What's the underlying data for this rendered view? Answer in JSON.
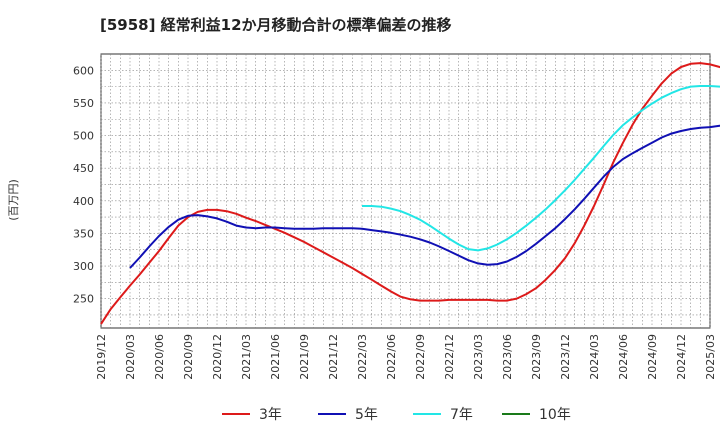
{
  "chart_data": {
    "type": "line",
    "title": "[5958]  経常利益12か月移動合計の標準偏差の推移",
    "ylabel": "(百万円)",
    "xlabel": "",
    "ylim": [
      205,
      625
    ],
    "yticks": [
      250,
      300,
      350,
      400,
      450,
      500,
      550,
      600
    ],
    "x_ticks": [
      "2019/12",
      "2020/03",
      "2020/06",
      "2020/09",
      "2020/12",
      "2021/03",
      "2021/06",
      "2021/09",
      "2021/12",
      "2022/03",
      "2022/06",
      "2022/09",
      "2022/12",
      "2023/03",
      "2023/06",
      "2023/09",
      "2023/12",
      "2024/03",
      "2024/06",
      "2024/09",
      "2024/12",
      "2025/03"
    ],
    "grid": true,
    "legend_position": "bottom",
    "series": [
      {
        "name": "3年",
        "color": "#dd1a1a",
        "points": [
          [
            "2019/12",
            211
          ],
          [
            "2020/01",
            234
          ],
          [
            "2020/02",
            252
          ],
          [
            "2020/03",
            270
          ],
          [
            "2020/04",
            287
          ],
          [
            "2020/05",
            305
          ],
          [
            "2020/06",
            323
          ],
          [
            "2020/07",
            343
          ],
          [
            "2020/08",
            362
          ],
          [
            "2020/09",
            375
          ],
          [
            "2020/10",
            383
          ],
          [
            "2020/11",
            386
          ],
          [
            "2020/12",
            386
          ],
          [
            "2021/01",
            384
          ],
          [
            "2021/02",
            380
          ],
          [
            "2021/03",
            374
          ],
          [
            "2021/04",
            369
          ],
          [
            "2021/05",
            363
          ],
          [
            "2021/06",
            357
          ],
          [
            "2021/07",
            351
          ],
          [
            "2021/08",
            344
          ],
          [
            "2021/09",
            337
          ],
          [
            "2021/10",
            329
          ],
          [
            "2021/11",
            321
          ],
          [
            "2021/12",
            313
          ],
          [
            "2022/01",
            305
          ],
          [
            "2022/02",
            297
          ],
          [
            "2022/03",
            288
          ],
          [
            "2022/04",
            279
          ],
          [
            "2022/05",
            270
          ],
          [
            "2022/06",
            261
          ],
          [
            "2022/07",
            253
          ],
          [
            "2022/08",
            249
          ],
          [
            "2022/09",
            247
          ],
          [
            "2022/10",
            247
          ],
          [
            "2022/11",
            247
          ],
          [
            "2022/12",
            248
          ],
          [
            "2023/01",
            248
          ],
          [
            "2023/02",
            248
          ],
          [
            "2023/03",
            248
          ],
          [
            "2023/04",
            248
          ],
          [
            "2023/05",
            247
          ],
          [
            "2023/06",
            247
          ],
          [
            "2023/07",
            250
          ],
          [
            "2023/08",
            257
          ],
          [
            "2023/09",
            266
          ],
          [
            "2023/10",
            279
          ],
          [
            "2023/11",
            294
          ],
          [
            "2023/12",
            312
          ],
          [
            "2024/01",
            335
          ],
          [
            "2024/02",
            362
          ],
          [
            "2024/03",
            392
          ],
          [
            "2024/04",
            425
          ],
          [
            "2024/05",
            459
          ],
          [
            "2024/06",
            489
          ],
          [
            "2024/07",
            517
          ],
          [
            "2024/08",
            541
          ],
          [
            "2024/09",
            561
          ],
          [
            "2024/10",
            580
          ],
          [
            "2024/11",
            595
          ],
          [
            "2024/12",
            605
          ],
          [
            "2025/01",
            610
          ],
          [
            "2025/02",
            611
          ],
          [
            "2025/03",
            609
          ],
          [
            "2025/04",
            605
          ],
          [
            "2025/05",
            599
          ],
          [
            "2025/06",
            593
          ]
        ]
      },
      {
        "name": "5年",
        "color": "#1010b4",
        "points": [
          [
            "2020/03",
            297
          ],
          [
            "2020/04",
            313
          ],
          [
            "2020/05",
            330
          ],
          [
            "2020/06",
            346
          ],
          [
            "2020/07",
            360
          ],
          [
            "2020/08",
            371
          ],
          [
            "2020/09",
            377
          ],
          [
            "2020/10",
            378
          ],
          [
            "2020/11",
            376
          ],
          [
            "2020/12",
            373
          ],
          [
            "2021/01",
            368
          ],
          [
            "2021/02",
            362
          ],
          [
            "2021/03",
            359
          ],
          [
            "2021/04",
            358
          ],
          [
            "2021/05",
            359
          ],
          [
            "2021/06",
            359
          ],
          [
            "2021/07",
            358
          ],
          [
            "2021/08",
            357
          ],
          [
            "2021/09",
            357
          ],
          [
            "2021/10",
            357
          ],
          [
            "2021/11",
            358
          ],
          [
            "2021/12",
            358
          ],
          [
            "2022/01",
            358
          ],
          [
            "2022/02",
            358
          ],
          [
            "2022/03",
            357
          ],
          [
            "2022/04",
            355
          ],
          [
            "2022/05",
            353
          ],
          [
            "2022/06",
            351
          ],
          [
            "2022/07",
            348
          ],
          [
            "2022/08",
            345
          ],
          [
            "2022/09",
            341
          ],
          [
            "2022/10",
            336
          ],
          [
            "2022/11",
            330
          ],
          [
            "2022/12",
            323
          ],
          [
            "2023/01",
            316
          ],
          [
            "2023/02",
            309
          ],
          [
            "2023/03",
            304
          ],
          [
            "2023/04",
            302
          ],
          [
            "2023/05",
            303
          ],
          [
            "2023/06",
            307
          ],
          [
            "2023/07",
            314
          ],
          [
            "2023/08",
            323
          ],
          [
            "2023/09",
            334
          ],
          [
            "2023/10",
            346
          ],
          [
            "2023/11",
            358
          ],
          [
            "2023/12",
            372
          ],
          [
            "2024/01",
            387
          ],
          [
            "2024/02",
            403
          ],
          [
            "2024/03",
            420
          ],
          [
            "2024/04",
            437
          ],
          [
            "2024/05",
            452
          ],
          [
            "2024/06",
            464
          ],
          [
            "2024/07",
            473
          ],
          [
            "2024/08",
            481
          ],
          [
            "2024/09",
            489
          ],
          [
            "2024/10",
            497
          ],
          [
            "2024/11",
            503
          ],
          [
            "2024/12",
            507
          ],
          [
            "2025/01",
            510
          ],
          [
            "2025/02",
            512
          ],
          [
            "2025/03",
            513
          ],
          [
            "2025/04",
            515
          ],
          [
            "2025/05",
            516
          ],
          [
            "2025/06",
            517
          ]
        ]
      },
      {
        "name": "7年",
        "color": "#22e6e6",
        "points": [
          [
            "2022/03",
            392
          ],
          [
            "2022/04",
            392
          ],
          [
            "2022/05",
            391
          ],
          [
            "2022/06",
            388
          ],
          [
            "2022/07",
            384
          ],
          [
            "2022/08",
            378
          ],
          [
            "2022/09",
            371
          ],
          [
            "2022/10",
            362
          ],
          [
            "2022/11",
            352
          ],
          [
            "2022/12",
            342
          ],
          [
            "2023/01",
            333
          ],
          [
            "2023/02",
            326
          ],
          [
            "2023/03",
            324
          ],
          [
            "2023/04",
            327
          ],
          [
            "2023/05",
            333
          ],
          [
            "2023/06",
            341
          ],
          [
            "2023/07",
            351
          ],
          [
            "2023/08",
            362
          ],
          [
            "2023/09",
            374
          ],
          [
            "2023/10",
            387
          ],
          [
            "2023/11",
            401
          ],
          [
            "2023/12",
            416
          ],
          [
            "2024/01",
            432
          ],
          [
            "2024/02",
            449
          ],
          [
            "2024/03",
            466
          ],
          [
            "2024/04",
            484
          ],
          [
            "2024/05",
            501
          ],
          [
            "2024/06",
            516
          ],
          [
            "2024/07",
            528
          ],
          [
            "2024/08",
            539
          ],
          [
            "2024/09",
            549
          ],
          [
            "2024/10",
            558
          ],
          [
            "2024/11",
            565
          ],
          [
            "2024/12",
            571
          ],
          [
            "2025/01",
            575
          ],
          [
            "2025/02",
            576
          ],
          [
            "2025/03",
            576
          ],
          [
            "2025/04",
            575
          ],
          [
            "2025/05",
            573
          ],
          [
            "2025/06",
            569
          ]
        ]
      },
      {
        "name": "10年",
        "color": "#1a7a1a",
        "points": []
      }
    ]
  }
}
